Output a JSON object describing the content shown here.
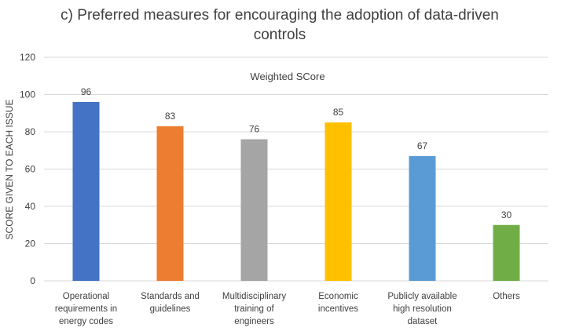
{
  "chart_data": {
    "type": "bar",
    "title": "c) Preferred measures for encouraging the adoption of data-driven controls",
    "title_lines": [
      "c) Preferred measures for encouraging the adoption of data-driven",
      "controls"
    ],
    "ylabel": "SCORE GIVEN TO EACH ISSUE",
    "ylim": [
      0,
      120
    ],
    "yticks": [
      0,
      20,
      40,
      60,
      80,
      100,
      120
    ],
    "grid": true,
    "series": [
      {
        "name": "Weighted SCore",
        "values": [
          96,
          83,
          76,
          85,
          67,
          30
        ]
      }
    ],
    "categories": [
      [
        "Operational",
        "requirements in",
        "energy codes"
      ],
      [
        "Standards and",
        "guidelines"
      ],
      [
        "Multidisciplinary",
        "training of",
        "engineers"
      ],
      [
        "Economic",
        "incentives"
      ],
      [
        "Publicly available",
        "high resolution",
        "dataset"
      ],
      [
        "Others"
      ]
    ],
    "colors": [
      "#4472c4",
      "#ed7d31",
      "#a5a5a5",
      "#ffc000",
      "#5b9bd5",
      "#70ad47"
    ]
  }
}
